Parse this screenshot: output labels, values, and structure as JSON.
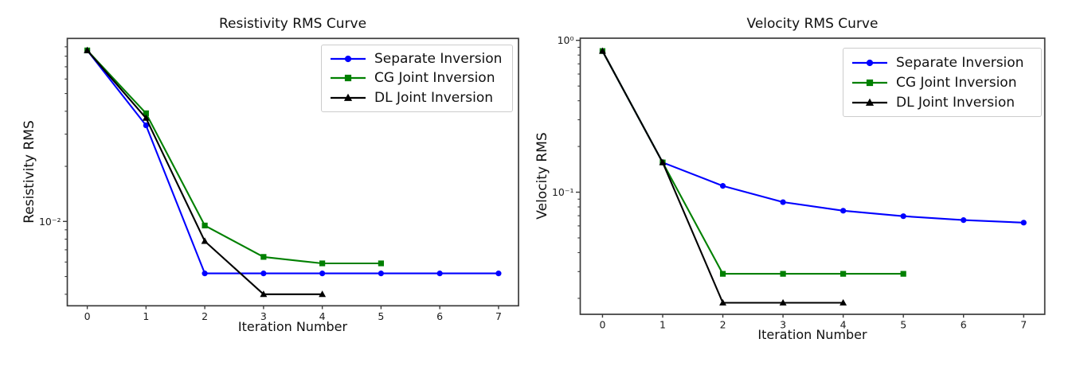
{
  "figure": {
    "background": "#ffffff"
  },
  "chart_data": [
    {
      "type": "line",
      "title": "Resistivity RMS Curve",
      "xlabel": "Iteration Number",
      "ylabel": "Resistivity RMS",
      "x_scale": "linear",
      "y_scale": "log",
      "xlim": [
        -0.34,
        7.34
      ],
      "ylim": [
        0.00346,
        0.1
      ],
      "x_ticks": [
        0,
        1,
        2,
        3,
        4,
        5,
        6,
        7
      ],
      "y_major_ticks": [
        {
          "value": 0.01,
          "label": "10⁻²"
        }
      ],
      "grid": false,
      "legend_position": "upper right",
      "series": [
        {
          "name": "Separate Inversion",
          "color": "#0000ff",
          "marker": "circle",
          "x": [
            0,
            1,
            2,
            3,
            4,
            5,
            6,
            7
          ],
          "y": [
            0.086,
            0.0335,
            0.0052,
            0.0052,
            0.0052,
            0.0052,
            0.0052,
            0.0052
          ]
        },
        {
          "name": "CG Joint Inversion",
          "color": "#008000",
          "marker": "square",
          "x": [
            0,
            1,
            2,
            3,
            4,
            5
          ],
          "y": [
            0.086,
            0.039,
            0.0095,
            0.0064,
            0.0059,
            0.0059
          ]
        },
        {
          "name": "DL Joint Inversion",
          "color": "#000000",
          "marker": "triangle",
          "x": [
            0,
            1,
            2,
            3,
            4
          ],
          "y": [
            0.086,
            0.0367,
            0.0078,
            0.004,
            0.004
          ]
        }
      ]
    },
    {
      "type": "line",
      "title": "Velocity RMS Curve",
      "xlabel": "Iteration Number",
      "ylabel": "Velocity RMS",
      "x_scale": "linear",
      "y_scale": "log",
      "xlim": [
        -0.37,
        7.35
      ],
      "ylim": [
        0.0157,
        1.033
      ],
      "x_ticks": [
        0,
        1,
        2,
        3,
        4,
        5,
        6,
        7
      ],
      "y_major_ticks": [
        {
          "value": 1,
          "label": "10⁰"
        },
        {
          "value": 0.1,
          "label": "10⁻¹"
        }
      ],
      "grid": false,
      "legend_position": "upper right",
      "series": [
        {
          "name": "Separate Inversion",
          "color": "#0000ff",
          "marker": "circle",
          "x": [
            0,
            1,
            2,
            3,
            4,
            5,
            6,
            7
          ],
          "y": [
            0.85,
            0.157,
            0.11,
            0.086,
            0.0755,
            0.0695,
            0.0655,
            0.063
          ]
        },
        {
          "name": "CG Joint Inversion",
          "color": "#008000",
          "marker": "square",
          "x": [
            0,
            1,
            2,
            3,
            4,
            5
          ],
          "y": [
            0.85,
            0.157,
            0.029,
            0.029,
            0.029,
            0.029
          ]
        },
        {
          "name": "DL Joint Inversion",
          "color": "#000000",
          "marker": "triangle",
          "x": [
            0,
            1,
            2,
            3,
            4
          ],
          "y": [
            0.85,
            0.157,
            0.0187,
            0.0187,
            0.0187
          ]
        }
      ]
    }
  ]
}
